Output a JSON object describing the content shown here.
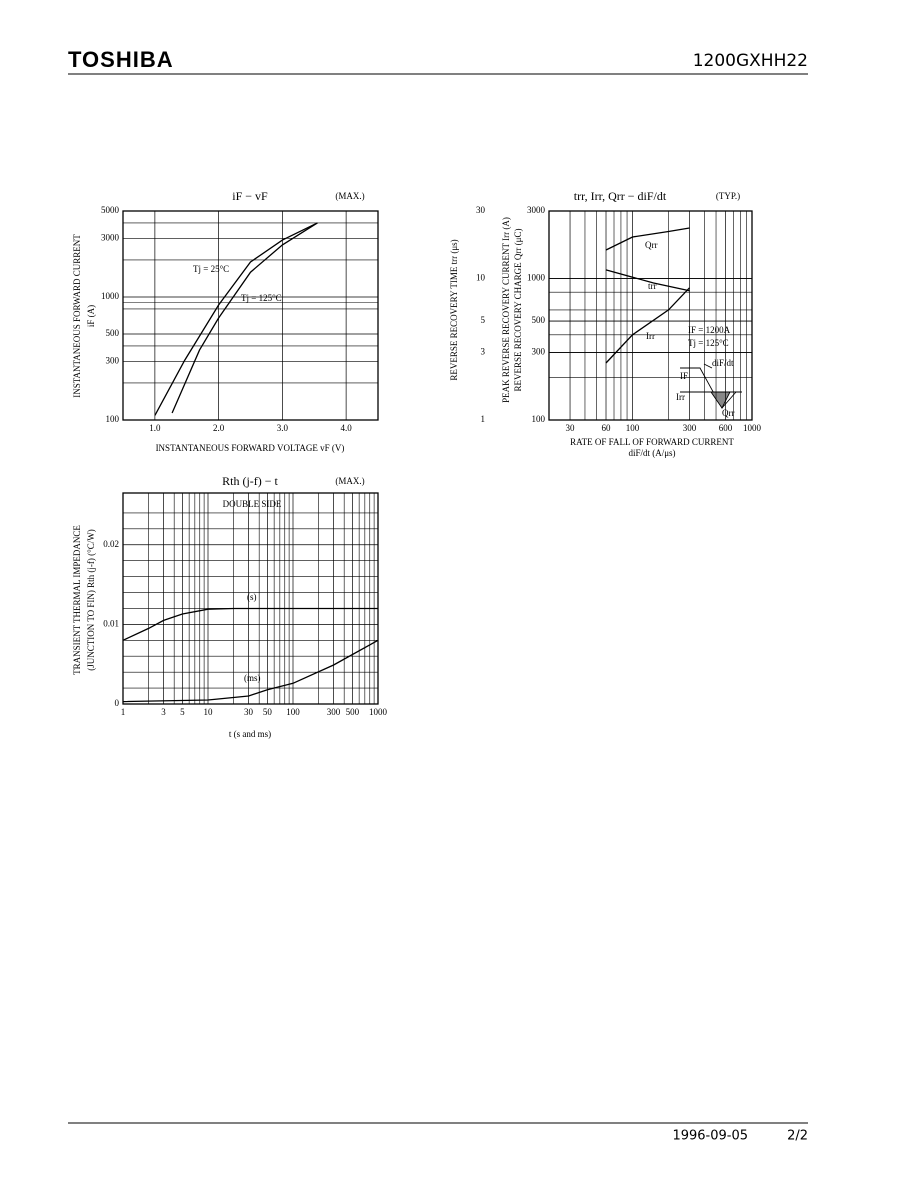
{
  "header": {
    "logo": "TOSHIBA",
    "part_number": "1200GXHH22"
  },
  "footer": {
    "date": "1996-09-05",
    "page": "2/2"
  },
  "chart_data": [
    {
      "type": "line",
      "title": "iF − vF",
      "subtitle": "(MAX.)",
      "xlabel": [
        "INSTANTANEOUS FORWARD VOLTAGE  vF  (V)"
      ],
      "ylabel": [
        "INSTANTANEOUS FORWARD CURRENT",
        "iF  (A)"
      ],
      "xscale": "linear",
      "yscale": "log",
      "xlim": [
        0.5,
        4.5
      ],
      "ylim": [
        100,
        5000
      ],
      "xticks": [
        {
          "value": 1,
          "label": "1.0"
        },
        {
          "value": 2,
          "label": "2.0"
        },
        {
          "value": 3,
          "label": "3.0"
        },
        {
          "value": 4,
          "label": "4.0"
        }
      ],
      "yticks": [
        100,
        300,
        500,
        1000,
        3000,
        5000
      ],
      "minor_yticks": [
        200,
        400,
        800,
        900,
        2000,
        4000
      ],
      "series": [
        {
          "name": "Tj = 25°C",
          "color": "#000000",
          "x": [
            1.0,
            1.47,
            2.0,
            2.5,
            3.0,
            3.55
          ],
          "values": [
            109,
            307,
            860,
            1925,
            2900,
            4000
          ]
        },
        {
          "name": "Tj = 125°C",
          "color": "#000000",
          "x": [
            1.27,
            1.7,
            2.0,
            2.5,
            3.0,
            3.55
          ],
          "values": [
            114,
            370,
            675,
            1590,
            2650,
            4000
          ]
        }
      ]
    },
    {
      "type": "line",
      "title": "trr, Irr, Qrr − diF/dt",
      "subtitle": "(TYP.)",
      "xlabel": [
        "RATE OF FALL OF FORWARD CURRENT",
        "diF/dt  (A/μs)"
      ],
      "ylabel": [
        "REVERSE RECOVERY TIME  trr  (μs)"
      ],
      "y2label": [
        "PEAK REVERSE RECOVERY CURRENT  Irr  (A)",
        "REVERSE RECOVERY CHARGE  Qrr  (μC)"
      ],
      "xscale": "log",
      "yscale": "log",
      "y2scale": "log",
      "xlim": [
        20,
        1000
      ],
      "ylim": [
        1,
        30
      ],
      "y2lim": [
        100,
        3000
      ],
      "xticks": [
        30,
        60,
        100,
        300,
        600,
        1000
      ],
      "minor_xticks": [
        40,
        50,
        70,
        80,
        90,
        200,
        400,
        500,
        700,
        800,
        900
      ],
      "yticks": [
        1,
        3,
        5,
        10,
        30
      ],
      "y2ticks": [
        100,
        300,
        500,
        1000,
        3000
      ],
      "minor_y2ticks": [
        200,
        400,
        600,
        800
      ],
      "annotations": [
        "IF = 1200A",
        "Tj = 125°C"
      ],
      "inset_labels": [
        "diF/dt",
        "IF",
        "Irr",
        "Qrr"
      ],
      "series": [
        {
          "name": "Qrr",
          "color": "#000000",
          "axis": "y2",
          "x": [
            60,
            100,
            200,
            300
          ],
          "values": [
            1590,
            1965,
            2150,
            2275
          ]
        },
        {
          "name": "trr",
          "color": "#000000",
          "axis": "y",
          "x": [
            60,
            150,
            300
          ],
          "values": [
            11.5,
            9.3,
            8.2
          ]
        },
        {
          "name": "Irr",
          "color": "#000000",
          "axis": "y2",
          "x": [
            60,
            100,
            200,
            300
          ],
          "values": [
            253,
            400,
            600,
            860
          ]
        }
      ]
    },
    {
      "type": "line",
      "title": "Rth (j-f) − t",
      "subtitle": "(MAX.)",
      "xlabel": [
        "t  (s and ms)"
      ],
      "ylabel": [
        "TRANSIENT THERMAL IMPEDANCE",
        "(JUNCTION TO FIN)  Rth (j-f)  (°C/W)"
      ],
      "xscale": "log",
      "yscale": "linear",
      "xlim": [
        1,
        1000
      ],
      "ylim": [
        0,
        0.0265
      ],
      "xticks": [
        1,
        3,
        5,
        10,
        30,
        50,
        100,
        300,
        500,
        1000
      ],
      "minor_xticks": [
        2,
        4,
        6,
        7,
        8,
        9,
        20,
        40,
        60,
        70,
        80,
        90,
        200,
        400,
        600,
        700,
        800,
        900
      ],
      "yticks": [
        0,
        0.01,
        0.02
      ],
      "minor_yticks": [
        0.002,
        0.004,
        0.006,
        0.008,
        0.012,
        0.014,
        0.016,
        0.018,
        0.022,
        0.024
      ],
      "annotations": [
        "DOUBLE SIDE"
      ],
      "series": [
        {
          "name": "(s)",
          "color": "#000000",
          "x": [
            1,
            2,
            3,
            5,
            10,
            20,
            1000
          ],
          "values": [
            0.008,
            0.0095,
            0.0105,
            0.0113,
            0.0119,
            0.012,
            0.012
          ]
        },
        {
          "name": "(ms)",
          "color": "#000000",
          "x": [
            1,
            10,
            30,
            50,
            100,
            300,
            1000
          ],
          "values": [
            0.0003,
            0.0005,
            0.001,
            0.0018,
            0.0026,
            0.0049,
            0.008
          ]
        }
      ]
    }
  ]
}
